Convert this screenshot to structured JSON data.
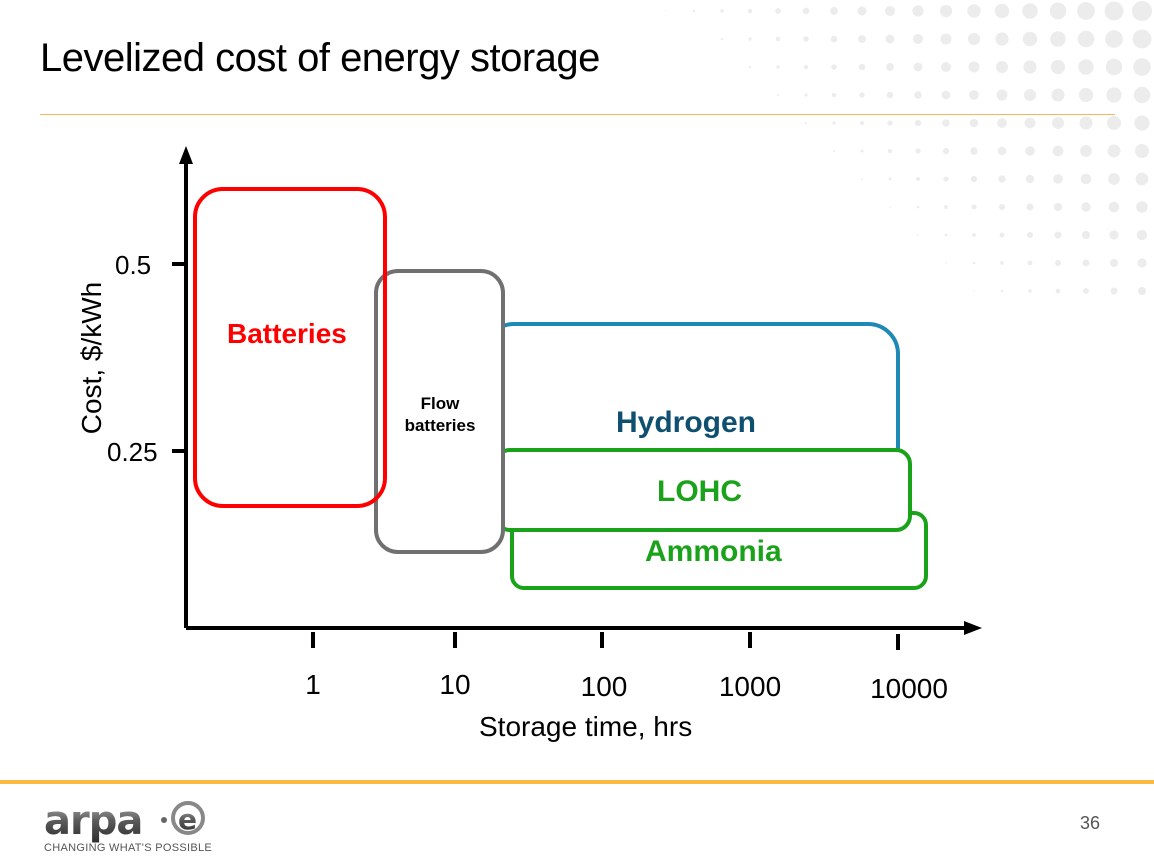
{
  "slide": {
    "title": "Levelized cost of energy storage",
    "page_number": "36",
    "footer": {
      "logo_text": "arpa·e",
      "tagline": "CHANGING WHAT'S POSSIBLE"
    },
    "colors": {
      "accent_orange": "#fbb940",
      "title_rule": "#f5b460",
      "batteries": "#ff0000",
      "flow_batteries": "#707070",
      "hydrogen_border": "#1e88b6",
      "hydrogen_text": "#0f4f70",
      "lohc": "#1aa31a",
      "ammonia": "#1aa31a"
    }
  },
  "chart_data": {
    "type": "area",
    "title": "Levelized cost of energy storage",
    "xlabel": "Storage time, hrs",
    "ylabel": "Cost, $/kWh",
    "x_scale": "log",
    "x_ticks": [
      "1",
      "10",
      "100",
      "1000",
      "10000"
    ],
    "y_ticks": [
      "0.5",
      "0.25"
    ],
    "grid": false,
    "legend": "none (labels inside regions)",
    "regions": [
      {
        "name": "Batteries",
        "color": "#ff0000",
        "x_range_hrs": [
          0.1,
          4
        ],
        "y_range": [
          0.17,
          0.6
        ]
      },
      {
        "name": "Flow batteries",
        "color": "#707070",
        "x_range_hrs": [
          4,
          20
        ],
        "y_range": [
          0.12,
          0.49
        ]
      },
      {
        "name": "Hydrogen",
        "color": "#1e88b6",
        "x_range_hrs": [
          20,
          10000
        ],
        "y_range": [
          0.17,
          0.42
        ]
      },
      {
        "name": "LOHC",
        "color": "#1aa31a",
        "x_range_hrs": [
          25,
          10000
        ],
        "y_range": [
          0.14,
          0.26
        ]
      },
      {
        "name": "Ammonia",
        "color": "#1aa31a",
        "x_range_hrs": [
          30,
          12000
        ],
        "y_range": [
          0.09,
          0.17
        ]
      }
    ]
  },
  "labels": {
    "batteries": "Batteries",
    "flow_line1": "Flow",
    "flow_line2": "batteries",
    "hydrogen": "Hydrogen",
    "lohc": "LOHC",
    "ammonia": "Ammonia",
    "x_ticks": [
      "1",
      "10",
      "100",
      "1000",
      "10000"
    ],
    "y_ticks": [
      "0.5",
      "0.25"
    ],
    "xlabel": "Storage time, hrs",
    "ylabel": "Cost, $/kWh"
  }
}
